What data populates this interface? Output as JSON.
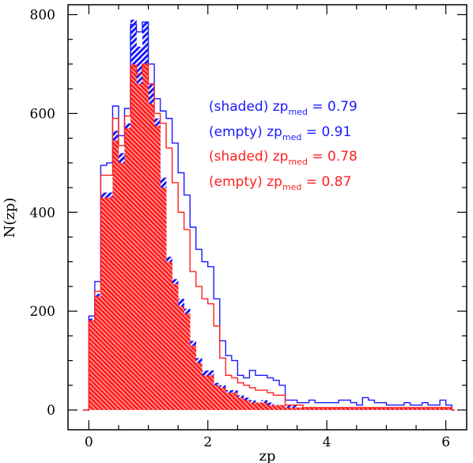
{
  "chart_data": {
    "type": "histogram",
    "title": "",
    "xlabel": "zp",
    "ylabel": "N(zp)",
    "xlim": [
      -0.35,
      6.35
    ],
    "ylim": [
      -40,
      820
    ],
    "x_ticks": [
      0,
      2,
      4,
      6
    ],
    "y_ticks": [
      0,
      200,
      400,
      600,
      800
    ],
    "x_edges": [
      0.0,
      0.1,
      0.2,
      0.3,
      0.4,
      0.5,
      0.6,
      0.7,
      0.8,
      0.9,
      1.0,
      1.1,
      1.2,
      1.3,
      1.4,
      1.5,
      1.6,
      1.7,
      1.8,
      1.9,
      2.0,
      2.1,
      2.2,
      2.3,
      2.4,
      2.5,
      2.6,
      2.7,
      2.8,
      2.9,
      3.0,
      3.1,
      3.2,
      3.3,
      3.4,
      3.5,
      3.6,
      3.7,
      3.8,
      3.9,
      4.0,
      4.1,
      4.2,
      4.3,
      4.4,
      4.5,
      4.6,
      4.7,
      4.8,
      4.9,
      5.0,
      5.1,
      5.2,
      5.3,
      5.4,
      5.5,
      5.6,
      5.7,
      5.8,
      5.9,
      6.0,
      6.1
    ],
    "series": [
      {
        "name": "",
        "style": "shaded",
        "color": "#1a1aff",
        "median_label": "(shaded) zp",
        "median_sub": "med",
        "median_value": "= 0.79",
        "values": [
          185,
          235,
          440,
          440,
          565,
          520,
          580,
          790,
          735,
          785,
          660,
          590,
          470,
          310,
          265,
          225,
          205,
          140,
          105,
          80,
          80,
          55,
          50,
          40,
          40,
          30,
          25,
          20,
          15,
          20,
          15,
          10,
          10,
          10,
          10,
          5,
          5,
          5,
          5,
          5,
          5,
          5,
          5,
          5,
          5,
          5,
          5,
          5,
          5,
          5,
          5,
          5,
          5,
          5,
          5,
          5,
          5,
          5,
          5,
          5,
          5
        ]
      },
      {
        "name": "",
        "style": "empty",
        "color": "#1a1aff",
        "median_label": "(empty)  zp",
        "median_sub": "med",
        "median_value": "= 0.91",
        "values": [
          190,
          260,
          495,
          500,
          615,
          555,
          610,
          780,
          765,
          785,
          700,
          630,
          605,
          590,
          540,
          480,
          435,
          370,
          325,
          300,
          290,
          225,
          140,
          110,
          100,
          70,
          65,
          80,
          70,
          70,
          65,
          60,
          50,
          20,
          20,
          15,
          15,
          20,
          15,
          15,
          15,
          15,
          20,
          20,
          15,
          10,
          25,
          20,
          15,
          15,
          10,
          10,
          10,
          15,
          10,
          10,
          15,
          10,
          10,
          20,
          10
        ]
      },
      {
        "name": "",
        "style": "shaded",
        "color": "#ff1f1f",
        "median_label": "(shaded) zp",
        "median_sub": "med",
        "median_value": "= 0.78",
        "values": [
          180,
          230,
          430,
          430,
          545,
          500,
          570,
          700,
          660,
          700,
          620,
          575,
          450,
          300,
          255,
          210,
          195,
          130,
          95,
          70,
          70,
          50,
          45,
          35,
          35,
          25,
          20,
          15,
          15,
          15,
          10,
          10,
          10,
          5,
          5,
          5,
          5,
          5,
          5,
          5,
          5,
          5,
          5,
          5,
          5,
          5,
          5,
          5,
          5,
          5,
          5,
          5,
          5,
          5,
          5,
          5,
          5,
          5,
          5,
          5,
          5
        ]
      },
      {
        "name": "",
        "style": "empty",
        "color": "#ff1f1f",
        "median_label": "(empty)   zp",
        "median_sub": "med",
        "median_value": "= 0.87",
        "values": [
          180,
          240,
          475,
          475,
          590,
          535,
          595,
          695,
          680,
          700,
          660,
          600,
          580,
          530,
          460,
          400,
          365,
          280,
          250,
          225,
          215,
          170,
          105,
          70,
          65,
          55,
          50,
          45,
          40,
          40,
          35,
          30,
          30,
          10,
          10,
          10,
          5,
          5,
          5,
          5,
          5,
          5,
          5,
          5,
          5,
          5,
          5,
          5,
          5,
          5,
          5,
          5,
          5,
          5,
          5,
          5,
          5,
          5,
          5,
          5,
          5
        ]
      }
    ]
  }
}
